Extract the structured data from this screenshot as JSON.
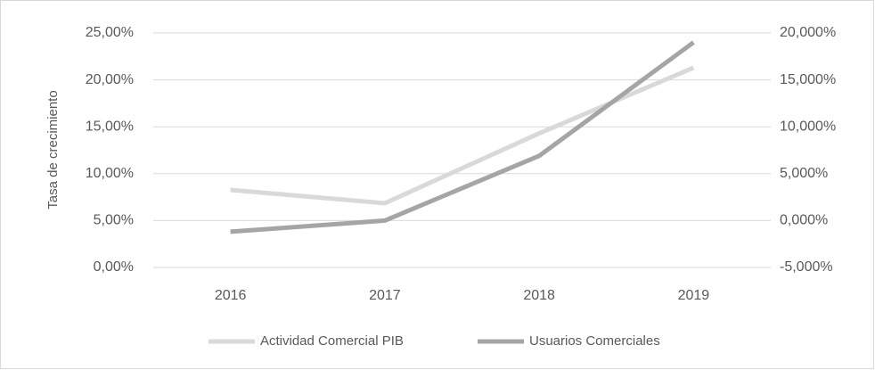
{
  "chart_data": {
    "type": "line",
    "y_axis_label": "Tasa de crecimiento",
    "categories": [
      "2016",
      "2017",
      "2018",
      "2019"
    ],
    "series": [
      {
        "name": "Actividad Comercial PIB",
        "color": "#d9d9d9",
        "values": [
          8.27,
          6.85,
          14.3,
          21.3
        ]
      },
      {
        "name": "Usuarios Comerciales",
        "color": "#a5a5a5",
        "axis": "y2",
        "values": [
          -1.19,
          0.0,
          6.9,
          19.0
        ]
      }
    ],
    "ylim": [
      0,
      25
    ],
    "yticks": [
      {
        "value": 0,
        "label": "0,00%"
      },
      {
        "value": 5,
        "label": "5,00%"
      },
      {
        "value": 10,
        "label": "10,00%"
      },
      {
        "value": 15,
        "label": "15,00%"
      },
      {
        "value": 20,
        "label": "20,00%"
      },
      {
        "value": 25,
        "label": "25,00%"
      }
    ],
    "y2lim": [
      -5,
      20
    ],
    "y2ticks": [
      {
        "value": -5,
        "label": "-5,000%"
      },
      {
        "value": 0,
        "label": "0,000%"
      },
      {
        "value": 5,
        "label": "5,000%"
      },
      {
        "value": 10,
        "label": "10,000%"
      },
      {
        "value": 15,
        "label": "15,000%"
      },
      {
        "value": 20,
        "label": "20,000%"
      }
    ],
    "grid": true,
    "legend": "bottom"
  }
}
